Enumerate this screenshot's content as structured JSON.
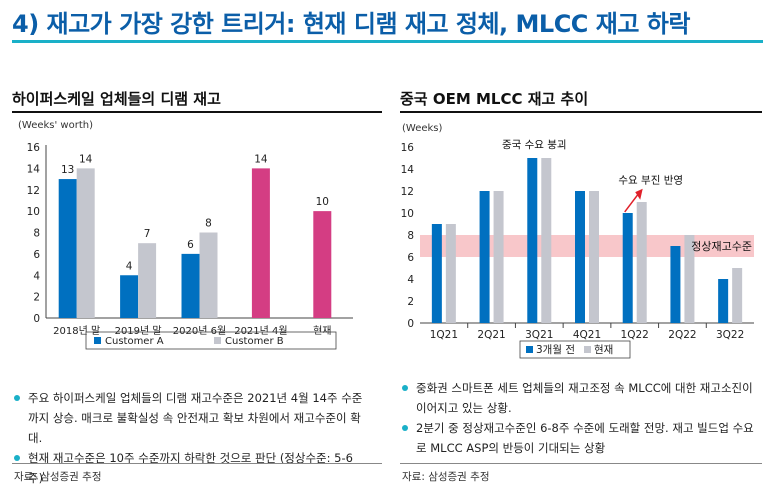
{
  "title": "4) 재고가 가장 강한 트리거: 현재 디램 재고 정체, MLCC 재고 하락",
  "colors": {
    "title": "#0b5ea8",
    "rule": "#1ab0c8",
    "blue": "#0070c0",
    "gray": "#c4c6ce",
    "magenta": "#d43d83",
    "band": "#f6b9bd",
    "arrow": "#e0202a"
  },
  "left": {
    "title": "하이퍼스케일 업체들의 디램 재고",
    "bullets": [
      "주요 하이퍼스케일 업체들의 디램 재고수준은 2021년 4월 14주 수준까지 상승. 매크로 불확실성 속 안전재고 확보 차원에서 재고수준이 확대.",
      "현재 재고수준은 10주 수준까지 하락한 것으로 판단 (정상수준: 5-6주)"
    ],
    "source": "자료: 삼성증권 추정"
  },
  "right": {
    "title": "중국 OEM MLCC 재고 추이",
    "bullets": [
      "중화권 스마트폰 세트 업체들의 재고조정 속 MLCC에 대한 재고소진이 이어지고 있는 상황.",
      "2분기 중 정상재고수준인 6-8주 수준에 도래할 전망. 재고 빌드업 수요로 MLCC ASP의 반등이 기대되는 상황"
    ],
    "source": "자료: 삼성증권 추정"
  },
  "chart_data": [
    {
      "type": "bar",
      "unit_label": "(Weeks' worth)",
      "categories": [
        "2018년 말",
        "2019년 말",
        "2020년 6월",
        "2021년 4월",
        "현재"
      ],
      "series": [
        {
          "name": "Customer A",
          "values": [
            13,
            4,
            6,
            null,
            null
          ],
          "color": "#0070c0"
        },
        {
          "name": "Customer B",
          "values": [
            14,
            7,
            8,
            null,
            null
          ],
          "color": "#c4c6ce"
        },
        {
          "name": "",
          "values": [
            null,
            null,
            null,
            14,
            10
          ],
          "color": "#d43d83"
        }
      ],
      "ylim": [
        0,
        16
      ],
      "yticks": [
        0,
        2,
        4,
        6,
        8,
        10,
        12,
        14,
        16
      ],
      "legend": "bottom",
      "grid": false
    },
    {
      "type": "bar",
      "unit_label": "(Weeks)",
      "categories": [
        "1Q21",
        "2Q21",
        "3Q21",
        "4Q21",
        "1Q22",
        "2Q22",
        "3Q22"
      ],
      "series": [
        {
          "name": "3개월 전",
          "values": [
            9,
            12,
            15,
            12,
            10,
            7,
            4
          ],
          "color": "#0070c0"
        },
        {
          "name": "현재",
          "values": [
            9,
            12,
            15,
            12,
            11,
            8,
            5
          ],
          "color": "#c4c6ce"
        }
      ],
      "ylim": [
        0,
        16
      ],
      "yticks": [
        0,
        2,
        4,
        6,
        8,
        10,
        12,
        14,
        16
      ],
      "band": {
        "from": 6,
        "to": 8,
        "label": "정상재고수준"
      },
      "annotations": [
        {
          "text": "중국 수요 붕괴",
          "category": "3Q21"
        },
        {
          "text": "수요 부진 반영",
          "category": "1Q22"
        }
      ],
      "legend": "bottom",
      "grid": false
    }
  ]
}
